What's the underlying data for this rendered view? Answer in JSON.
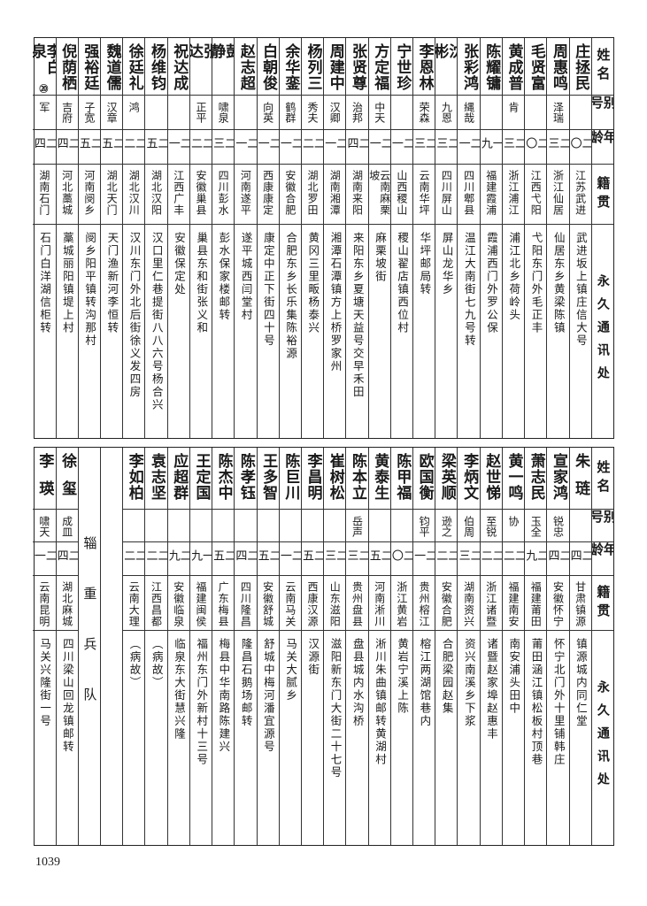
{
  "headers": {
    "name": "姓名",
    "alias": "别号",
    "age": "年龄",
    "native": "籍贯",
    "address": "永久通讯处"
  },
  "top_rows": [
    {
      "name": "庄拯民",
      "alias": "",
      "age": "二〇",
      "native": "江苏武进",
      "address": "武进坂上镇庄信大号"
    },
    {
      "name": "周惠鸣",
      "alias": "泽瑞",
      "age": "二三",
      "native": "浙江仙居",
      "address": "仙居东乡黄梁陈镇"
    },
    {
      "name": "毛贤富",
      "alias": "",
      "age": "二〇",
      "native": "江西弋阳",
      "address": "弋阳东门外毛正丰"
    },
    {
      "name": "黄成普",
      "alias": "肯",
      "age": "二三",
      "native": "浙江浦江",
      "address": "浦江北乡荷岭头"
    },
    {
      "name": "陈耀镛",
      "alias": "",
      "age": "一九",
      "native": "福建霞浦",
      "address": "霞浦西门外罗公保"
    },
    {
      "name": "张彩鸿",
      "alias": "縄哉",
      "age": "二一",
      "native": "四川郫县",
      "address": "温江大南街七九号转"
    },
    {
      "name": "沈彬",
      "alias": "九恩",
      "age": "二三",
      "native": "四川屏山",
      "address": "屏山龙华乡"
    },
    {
      "name": "李恩林",
      "alias": "荣森",
      "age": "二三",
      "native": "云南华坪",
      "address": "华坪邮局转"
    },
    {
      "name": "宁世珍",
      "alias": "",
      "age": "二一",
      "native": "山西稷山",
      "address": "稷山翟店镇西位村"
    },
    {
      "name": "方定福",
      "alias": "中天",
      "age": "二一",
      "native": "云南麻栗坡",
      "address": "麻栗坡街"
    },
    {
      "name": "张贤尊",
      "alias": "治邦",
      "age": "二四",
      "native": "湖南来阳",
      "address": "来阳东乡夏塘天益号交早禾田"
    },
    {
      "name": "周建中",
      "alias": "汉卿",
      "age": "二一",
      "native": "湖南湘潭",
      "address": "湘潭石潭镇方上桥罗家州"
    },
    {
      "name": "杨列三",
      "alias": "秀夫",
      "age": "二二",
      "native": "湖北罗田",
      "address": "黄冈三里畈杨泰兴"
    },
    {
      "name": "余华銮",
      "alias": "鹤群",
      "age": "二一",
      "native": "安徽合肥",
      "address": "合肥东乡长乐集陈裕源"
    },
    {
      "name": "白朝俊",
      "alias": "向英",
      "age": "二一",
      "native": "西康康定",
      "address": "康定中正下街四十号"
    },
    {
      "name": "赵志超",
      "alias": "",
      "age": "二一",
      "native": "河南遂平",
      "address": "遂平城西闫堂村"
    },
    {
      "name": "彭静",
      "alias": "啸泉",
      "age": "二三",
      "native": "四川彭水",
      "address": "彭水保家楼邮转"
    },
    {
      "name": "张达",
      "alias": "正平",
      "age": "二二",
      "native": "安徽巢县",
      "address": "巢县东和街张义和"
    },
    {
      "name": "祝达成",
      "alias": "",
      "age": "二一",
      "native": "江西广丰",
      "address": "安徽保定处"
    },
    {
      "name": "杨维钧",
      "alias": "",
      "age": "二五",
      "native": "湖北汉阳",
      "address": "汉口里仁巷提街八八六号杨合兴"
    },
    {
      "name": "徐廷礼",
      "alias": "鸿",
      "age": "二二",
      "native": "湖北汉川",
      "address": "汉川东门外北后街徐义发四房"
    },
    {
      "name": "魏道儒",
      "alias": "汉章",
      "age": "二五",
      "native": "湖北天门",
      "address": "天门渔新河李恒转"
    },
    {
      "name": "强裕廷",
      "alias": "子宽",
      "age": "二五",
      "native": "河南阌乡",
      "address": "阌乡阳平镇转沟那村"
    },
    {
      "name": "倪荫栖",
      "alias": "吉府",
      "age": "二四",
      "native": "河北藁城",
      "address": "藁城丽阳镇堤上村"
    },
    {
      "name": "李白泉",
      "mark": "⑳",
      "alias": "军",
      "age": "二四",
      "native": "湖南石门",
      "address": "石门白洋湖信柜转"
    }
  ],
  "bottom_rows": [
    {
      "name": "朱琏",
      "alias": "",
      "age": "二四",
      "native": "甘肃镇源",
      "address": "镇源城内同仁堂"
    },
    {
      "name": "宣家鸿",
      "alias": "锐忠",
      "age": "二四",
      "native": "安徽怀宁",
      "address": "怀宁北门外十里铺韩庄"
    },
    {
      "name": "萧志民",
      "alias": "玉全",
      "age": "二九",
      "native": "福建莆田",
      "address": "莆田涵江镇松板村顶巷"
    },
    {
      "name": "黄一鸣",
      "alias": "协",
      "age": "二二",
      "native": "福建南安",
      "address": "南安浦头田中"
    },
    {
      "name": "赵世悌",
      "alias": "至锐",
      "age": "二二",
      "native": "浙江诸暨",
      "address": "诸暨赵家埠赵惠丰"
    },
    {
      "name": "李炳文",
      "alias": "伯周",
      "age": "二三",
      "native": "湖南资兴",
      "address": "资兴南溪乡下浆"
    },
    {
      "name": "梁英顺",
      "alias": "逊之",
      "age": "二二",
      "native": "安徽合肥",
      "address": "合肥梁园赵集"
    },
    {
      "name": "欧国衡",
      "alias": "钧平",
      "age": "二一",
      "native": "贵州榕江",
      "address": "榕江两湖馆巷内"
    },
    {
      "name": "陈甲福",
      "alias": "",
      "age": "二〇",
      "native": "浙江黄岩",
      "address": "黄岩宁溪上陈"
    },
    {
      "name": "黄泰生",
      "alias": "",
      "age": "二五",
      "native": "河南淅川",
      "address": "淅川朱曲镇邮转黄湖村"
    },
    {
      "name": "陈本立",
      "alias": "岳声",
      "age": "二三",
      "native": "贵州盘县",
      "address": "盘县城内水沟桥"
    },
    {
      "name": "崔树松",
      "alias": "",
      "age": "二三",
      "native": "山东滋阳",
      "address": "滋阳新东门大街二十七号"
    },
    {
      "name": "李昌明",
      "alias": "",
      "age": "二五",
      "native": "西康汉源",
      "address": "汉源街"
    },
    {
      "name": "陈巨川",
      "alias": "",
      "age": "二一",
      "native": "云南马关",
      "address": "马关大腻乡"
    },
    {
      "name": "王多智",
      "alias": "",
      "age": "二五",
      "native": "安徽舒城",
      "address": "舒城中梅河潘宜源号"
    },
    {
      "name": "陈孝钰",
      "alias": "",
      "age": "二四",
      "native": "四川隆昌",
      "address": "隆昌石鹅场邮转"
    },
    {
      "name": "陈杰中",
      "alias": "",
      "age": "二五",
      "native": "广东梅县",
      "address": "梅县中华南路陈建兴"
    },
    {
      "name": "王定国",
      "alias": "",
      "age": "一九",
      "native": "福建闽侯",
      "address": "福州东门外新村十三号"
    },
    {
      "name": "应超群",
      "alias": "",
      "age": "二九",
      "native": "安徽临泉",
      "address": "临泉东大街慧兴隆"
    },
    {
      "name": "袁志坚",
      "alias": "",
      "age": "二二",
      "native": "江西昌都",
      "address": "（病故）"
    },
    {
      "name": "李如柏",
      "alias": "",
      "age": "二二",
      "native": "云南大理",
      "address": "（病故）"
    },
    {
      "type": "blank"
    },
    {
      "type": "section",
      "label": "辎重兵队"
    },
    {
      "name": "徐玺",
      "alias": "成皿",
      "age": "二四",
      "native": "湖北麻城",
      "address": "四川梁山回龙镇邮转"
    },
    {
      "name": "李瑛",
      "alias": "啸天",
      "age": "二一",
      "native": "云南昆明",
      "address": "马关兴隆街一号"
    }
  ],
  "page_number": "1039"
}
